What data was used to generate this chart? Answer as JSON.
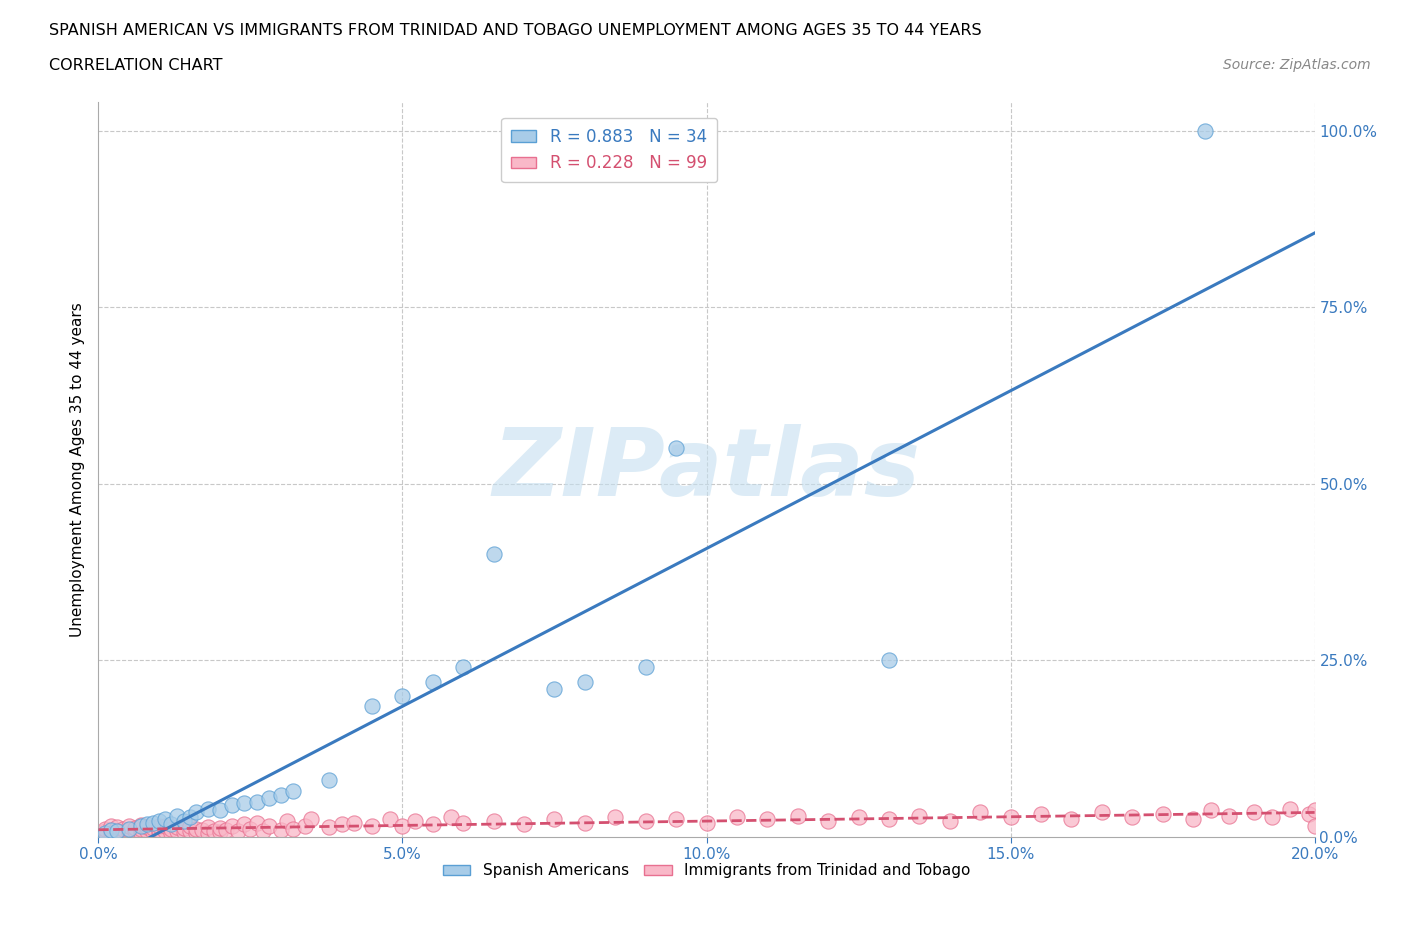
{
  "title_line1": "SPANISH AMERICAN VS IMMIGRANTS FROM TRINIDAD AND TOBAGO UNEMPLOYMENT AMONG AGES 35 TO 44 YEARS",
  "title_line2": "CORRELATION CHART",
  "source": "Source: ZipAtlas.com",
  "xlabel_ticks": [
    "0.0%",
    "5.0%",
    "10.0%",
    "15.0%",
    "20.0%"
  ],
  "xlabel_vals": [
    0.0,
    0.05,
    0.1,
    0.15,
    0.2
  ],
  "ylabel_ticks": [
    "0.0%",
    "25.0%",
    "50.0%",
    "75.0%",
    "100.0%"
  ],
  "ylabel_vals": [
    0.0,
    0.25,
    0.5,
    0.75,
    1.0
  ],
  "ylabel_label": "Unemployment Among Ages 35 to 44 years",
  "blue_R": 0.883,
  "blue_N": 34,
  "pink_R": 0.228,
  "pink_N": 99,
  "blue_color": "#a8cce8",
  "blue_edge_color": "#5a9fd4",
  "blue_line_color": "#3a7abf",
  "pink_color": "#f9b8c8",
  "pink_edge_color": "#e87090",
  "pink_line_color": "#d45070",
  "text_color_blue": "#3a7abf",
  "grid_color": "#c8c8c8",
  "watermark": "ZIPatlas",
  "watermark_color": "#c5dff0",
  "legend_label_blue": "Spanish Americans",
  "legend_label_pink": "Immigrants from Trinidad and Tobago",
  "blue_x": [
    0.001,
    0.002,
    0.003,
    0.005,
    0.007,
    0.008,
    0.009,
    0.01,
    0.011,
    0.012,
    0.013,
    0.014,
    0.015,
    0.016,
    0.018,
    0.02,
    0.022,
    0.024,
    0.026,
    0.028,
    0.03,
    0.032,
    0.038,
    0.045,
    0.05,
    0.055,
    0.06,
    0.065,
    0.075,
    0.08,
    0.09,
    0.095,
    0.13,
    0.182
  ],
  "blue_y": [
    0.005,
    0.01,
    0.008,
    0.012,
    0.015,
    0.018,
    0.02,
    0.022,
    0.025,
    0.018,
    0.03,
    0.022,
    0.028,
    0.035,
    0.04,
    0.038,
    0.045,
    0.048,
    0.05,
    0.055,
    0.06,
    0.065,
    0.08,
    0.185,
    0.2,
    0.22,
    0.24,
    0.4,
    0.21,
    0.22,
    0.24,
    0.55,
    0.25,
    1.0
  ],
  "pink_x": [
    0.001,
    0.001,
    0.001,
    0.002,
    0.002,
    0.002,
    0.003,
    0.003,
    0.003,
    0.004,
    0.004,
    0.005,
    0.005,
    0.005,
    0.006,
    0.006,
    0.007,
    0.007,
    0.007,
    0.008,
    0.008,
    0.009,
    0.009,
    0.01,
    0.01,
    0.01,
    0.011,
    0.011,
    0.012,
    0.012,
    0.013,
    0.013,
    0.014,
    0.014,
    0.015,
    0.015,
    0.016,
    0.016,
    0.017,
    0.018,
    0.018,
    0.019,
    0.02,
    0.02,
    0.021,
    0.022,
    0.023,
    0.024,
    0.025,
    0.026,
    0.027,
    0.028,
    0.03,
    0.031,
    0.032,
    0.034,
    0.035,
    0.038,
    0.04,
    0.042,
    0.045,
    0.048,
    0.05,
    0.052,
    0.055,
    0.058,
    0.06,
    0.065,
    0.07,
    0.075,
    0.08,
    0.085,
    0.09,
    0.095,
    0.1,
    0.105,
    0.11,
    0.115,
    0.12,
    0.125,
    0.13,
    0.135,
    0.14,
    0.145,
    0.15,
    0.155,
    0.16,
    0.165,
    0.17,
    0.175,
    0.18,
    0.183,
    0.186,
    0.19,
    0.193,
    0.196,
    0.199,
    0.2,
    0.2
  ],
  "pink_y": [
    0.005,
    0.008,
    0.012,
    0.006,
    0.01,
    0.015,
    0.004,
    0.009,
    0.014,
    0.007,
    0.012,
    0.005,
    0.01,
    0.016,
    0.008,
    0.013,
    0.006,
    0.011,
    0.017,
    0.008,
    0.014,
    0.007,
    0.013,
    0.005,
    0.01,
    0.016,
    0.009,
    0.015,
    0.006,
    0.012,
    0.008,
    0.014,
    0.007,
    0.013,
    0.009,
    0.016,
    0.005,
    0.012,
    0.01,
    0.006,
    0.014,
    0.009,
    0.007,
    0.013,
    0.01,
    0.016,
    0.008,
    0.018,
    0.012,
    0.02,
    0.009,
    0.015,
    0.01,
    0.022,
    0.012,
    0.016,
    0.025,
    0.014,
    0.018,
    0.02,
    0.015,
    0.025,
    0.016,
    0.022,
    0.018,
    0.028,
    0.02,
    0.022,
    0.018,
    0.025,
    0.02,
    0.028,
    0.022,
    0.025,
    0.02,
    0.028,
    0.025,
    0.03,
    0.022,
    0.028,
    0.025,
    0.03,
    0.022,
    0.035,
    0.028,
    0.032,
    0.025,
    0.035,
    0.028,
    0.032,
    0.025,
    0.038,
    0.03,
    0.035,
    0.028,
    0.04,
    0.032,
    0.038,
    0.015
  ]
}
